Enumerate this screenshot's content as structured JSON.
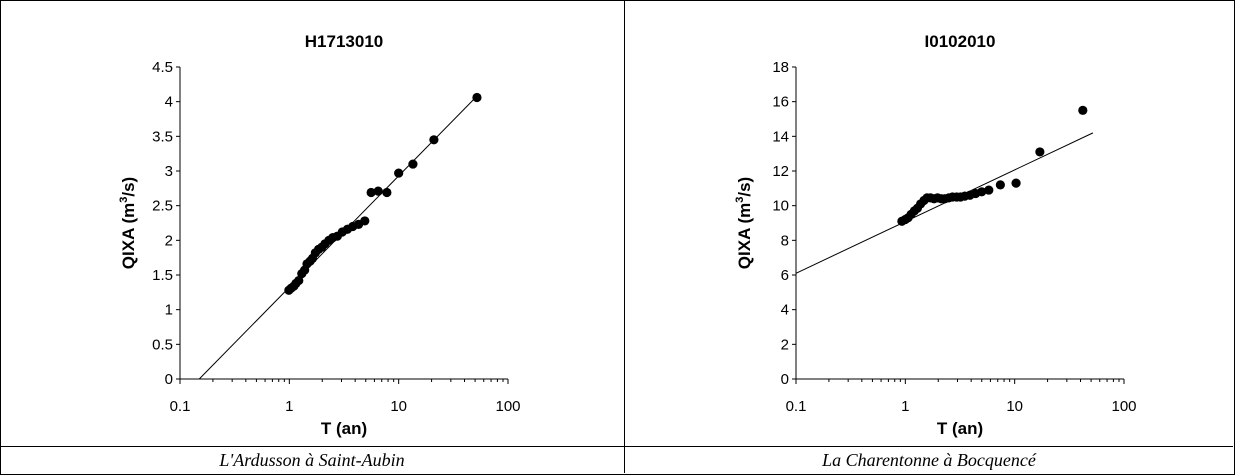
{
  "chart_data": [
    {
      "type": "scatter",
      "title": "H1713010",
      "xlabel": "T (an)",
      "ylabel_parts": [
        "QIXA (m",
        "3",
        "/s)"
      ],
      "xscale": "log",
      "xlim": [
        0.1,
        100
      ],
      "ylim": [
        0,
        4.5
      ],
      "xticks": [
        0.1,
        1,
        10,
        100
      ],
      "xtick_labels": [
        "0.1",
        "1",
        "10",
        "100"
      ],
      "yticks": [
        0,
        0.5,
        1,
        1.5,
        2,
        2.5,
        3,
        3.5,
        4,
        4.5
      ],
      "ytick_labels": [
        "0",
        "0.5",
        "1",
        "1.5",
        "2",
        "2.5",
        "3",
        "3.5",
        "4",
        "4.5"
      ],
      "grid": false,
      "points": {
        "x": [
          0.99,
          1.04,
          1.1,
          1.15,
          1.22,
          1.3,
          1.38,
          1.45,
          1.55,
          1.63,
          1.73,
          1.85,
          1.98,
          2.12,
          2.3,
          2.5,
          2.75,
          3.05,
          3.4,
          3.8,
          4.3,
          4.9,
          5.6,
          6.5,
          7.8,
          10,
          13.5,
          21,
          52
        ],
        "y": [
          1.28,
          1.31,
          1.34,
          1.38,
          1.42,
          1.52,
          1.57,
          1.66,
          1.7,
          1.74,
          1.82,
          1.87,
          1.9,
          1.95,
          2.0,
          2.04,
          2.06,
          2.12,
          2.16,
          2.2,
          2.23,
          2.28,
          2.69,
          2.71,
          2.69,
          2.97,
          3.1,
          3.45,
          4.06
        ]
      },
      "fit_line": {
        "x": [
          0.15,
          52
        ],
        "y": [
          0,
          4.08
        ]
      }
    },
    {
      "type": "scatter",
      "title": "I0102010",
      "xlabel": "T (an)",
      "ylabel_parts": [
        "QIXA (m",
        "3",
        "/s)"
      ],
      "xscale": "log",
      "xlim": [
        0.1,
        100
      ],
      "ylim": [
        0,
        18
      ],
      "xticks": [
        0.1,
        1,
        10,
        100
      ],
      "xtick_labels": [
        "0.1",
        "1",
        "10",
        "100"
      ],
      "yticks": [
        0,
        2,
        4,
        6,
        8,
        10,
        12,
        14,
        16,
        18
      ],
      "ytick_labels": [
        "0",
        "2",
        "4",
        "6",
        "8",
        "10",
        "12",
        "14",
        "16",
        "18"
      ],
      "grid": false,
      "points": {
        "x": [
          0.93,
          1.0,
          1.06,
          1.13,
          1.21,
          1.29,
          1.38,
          1.48,
          1.58,
          1.7,
          1.83,
          1.97,
          2.13,
          2.3,
          2.5,
          2.7,
          2.95,
          3.2,
          3.5,
          3.9,
          4.4,
          5.0,
          5.8,
          7.4,
          10.3,
          17,
          42
        ],
        "y": [
          9.1,
          9.2,
          9.3,
          9.5,
          9.7,
          9.85,
          10.1,
          10.3,
          10.45,
          10.45,
          10.4,
          10.45,
          10.4,
          10.4,
          10.45,
          10.5,
          10.5,
          10.5,
          10.55,
          10.6,
          10.7,
          10.8,
          10.9,
          11.2,
          11.3,
          13.1,
          15.5
        ]
      },
      "fit_line": {
        "x": [
          0.1,
          52
        ],
        "y": [
          6.1,
          14.2
        ]
      }
    }
  ],
  "captions": [
    "L'Ardusson à Saint-Aubin",
    "La Charentonne à Bocquencé"
  ]
}
